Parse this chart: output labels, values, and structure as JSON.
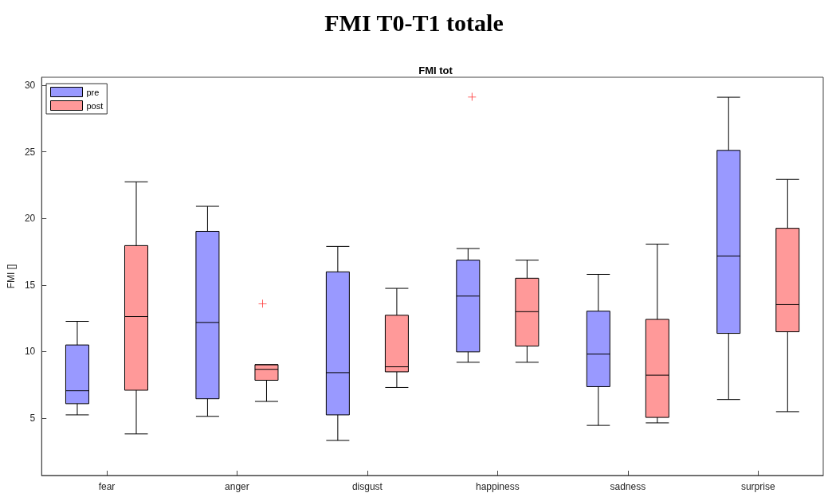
{
  "chart_data": {
    "type": "box",
    "title": "FMI T0-T1 totale",
    "subtitle": "FMI tot",
    "ylabel": "FMI []",
    "categories": [
      "fear",
      "anger",
      "disgust",
      "happiness",
      "sadness",
      "surprise"
    ],
    "ylim": [
      0.7,
      30.6
    ],
    "yticks": [
      5,
      10,
      15,
      20,
      25,
      30
    ],
    "grid": false,
    "legend": "top left",
    "series": [
      {
        "name": "pre",
        "color": "#9999ff",
        "boxes": [
          {
            "low": 5.25,
            "q1": 6.09,
            "median": 7.06,
            "q3": 10.5,
            "high": 12.27
          },
          {
            "low": 5.14,
            "q1": 6.46,
            "median": 12.19,
            "q3": 19.03,
            "high": 20.91
          },
          {
            "low": 3.33,
            "q1": 5.25,
            "median": 8.42,
            "q3": 15.99,
            "high": 17.9
          },
          {
            "low": 9.2,
            "q1": 9.98,
            "median": 14.17,
            "q3": 16.87,
            "high": 17.74,
            "outliers": [
              29.14
            ]
          },
          {
            "low": 4.46,
            "q1": 7.37,
            "median": 9.82,
            "q3": 13.04,
            "high": 15.8
          },
          {
            "low": 6.4,
            "q1": 11.37,
            "median": 17.18,
            "q3": 25.11,
            "high": 29.1
          }
        ]
      },
      {
        "name": "post",
        "color": "#ff9999",
        "boxes": [
          {
            "low": 3.82,
            "q1": 7.1,
            "median": 12.63,
            "q3": 17.96,
            "high": 22.75
          },
          {
            "low": 6.26,
            "q1": 7.85,
            "median": 8.67,
            "q3": 9.02,
            "high": 9.02,
            "outliers": [
              13.6
            ]
          },
          {
            "low": 7.31,
            "q1": 8.48,
            "median": 8.86,
            "q3": 12.73,
            "high": 14.75
          },
          {
            "low": 9.2,
            "q1": 10.42,
            "median": 13.0,
            "q3": 15.51,
            "high": 16.87
          },
          {
            "low": 4.65,
            "q1": 5.06,
            "median": 8.23,
            "q3": 12.42,
            "high": 18.07
          },
          {
            "low": 5.49,
            "q1": 11.49,
            "median": 13.53,
            "q3": 19.26,
            "high": 22.93
          }
        ]
      }
    ]
  }
}
